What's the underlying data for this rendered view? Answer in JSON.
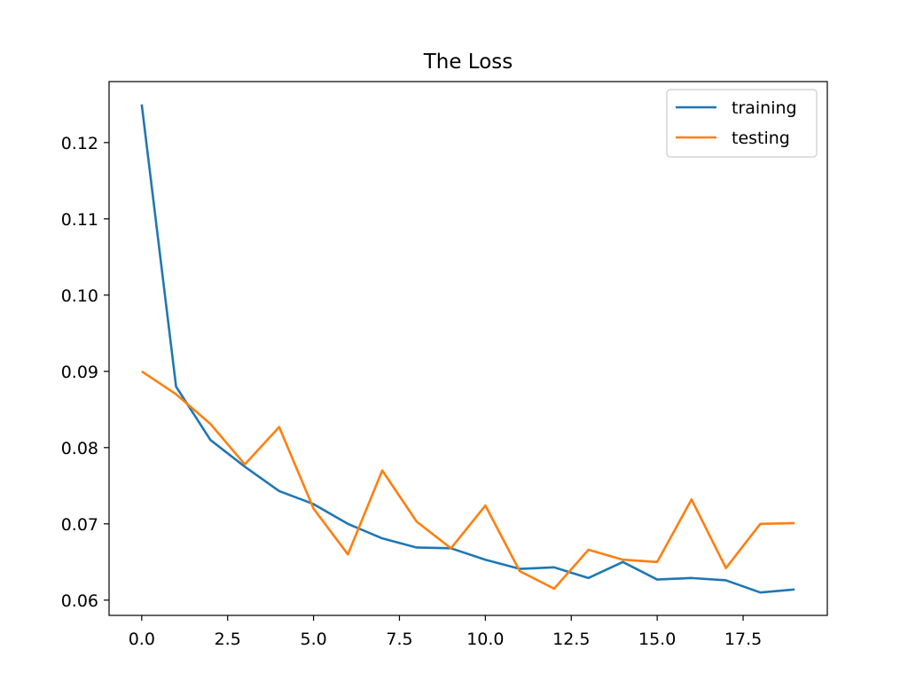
{
  "chart_data": {
    "type": "line",
    "title": "The Loss",
    "xlabel": "",
    "ylabel": "",
    "xlim": [
      -0.95,
      19.95
    ],
    "ylim": [
      0.058,
      0.128
    ],
    "x_ticks": [
      0.0,
      2.5,
      5.0,
      7.5,
      10.0,
      12.5,
      15.0,
      17.5
    ],
    "x_tick_labels": [
      "0.0",
      "2.5",
      "5.0",
      "7.5",
      "10.0",
      "12.5",
      "15.0",
      "17.5"
    ],
    "y_ticks": [
      0.06,
      0.07,
      0.08,
      0.09,
      0.1,
      0.11,
      0.12
    ],
    "y_tick_labels": [
      "0.06",
      "0.07",
      "0.08",
      "0.09",
      "0.10",
      "0.11",
      "0.12"
    ],
    "grid": false,
    "legend_position": "top-right",
    "x": [
      0,
      1,
      2,
      3,
      4,
      5,
      6,
      7,
      8,
      9,
      10,
      11,
      12,
      13,
      14,
      15,
      16,
      17,
      18,
      19
    ],
    "series": [
      {
        "name": "training",
        "color": "#1f77b4",
        "values": [
          0.125,
          0.088,
          0.081,
          0.0775,
          0.0743,
          0.0726,
          0.07,
          0.0681,
          0.0669,
          0.0668,
          0.0653,
          0.0641,
          0.0643,
          0.0629,
          0.065,
          0.0627,
          0.0629,
          0.0626,
          0.061,
          0.0614
        ]
      },
      {
        "name": "testing",
        "color": "#ff7f0e",
        "values": [
          0.09,
          0.087,
          0.0831,
          0.0778,
          0.0827,
          0.072,
          0.066,
          0.077,
          0.0703,
          0.0668,
          0.0724,
          0.0638,
          0.0615,
          0.0666,
          0.0653,
          0.065,
          0.0732,
          0.0642,
          0.07,
          0.0701
        ]
      }
    ]
  }
}
